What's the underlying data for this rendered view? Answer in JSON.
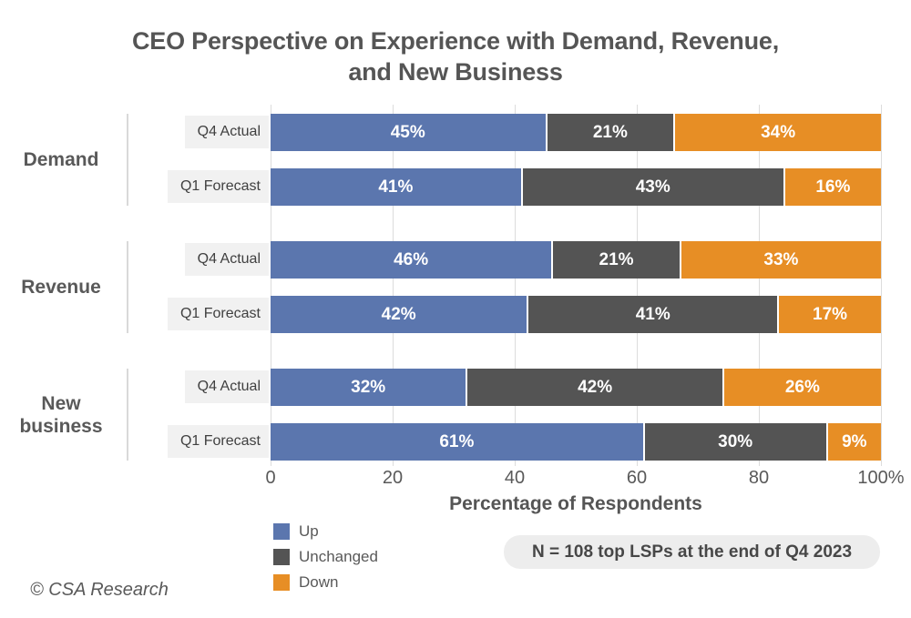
{
  "title": "CEO Perspective on Experience with Demand, Revenue,\nand New Business",
  "note": "N = 108 top LSPs at the end of Q4 2023",
  "footer": {
    "copyright": "© CSA Research"
  },
  "chart_data": {
    "type": "bar",
    "orientation": "horizontal",
    "stacked": true,
    "title": "CEO Perspective on Experience with Demand, Revenue, and New Business",
    "xlabel": "Percentage of Respondents",
    "unit": "%",
    "xlim": [
      0,
      100
    ],
    "x_ticks": [
      "0",
      "20",
      "40",
      "60",
      "80",
      "100%"
    ],
    "x_tick_values": [
      0,
      20,
      40,
      60,
      80,
      100
    ],
    "grid": true,
    "legend_position": "bottom-left",
    "series": [
      {
        "name": "Up",
        "color": "#5B76AE"
      },
      {
        "name": "Unchanged",
        "color": "#545454"
      },
      {
        "name": "Down",
        "color": "#E78E25"
      }
    ],
    "groups": [
      {
        "category": "Demand",
        "rows": [
          {
            "label": "Q4 Actual",
            "values": [
              45,
              21,
              34
            ]
          },
          {
            "label": "Q1 Forecast",
            "values": [
              41,
              43,
              16
            ]
          }
        ]
      },
      {
        "category": "Revenue",
        "rows": [
          {
            "label": "Q4 Actual",
            "values": [
              46,
              21,
              33
            ]
          },
          {
            "label": "Q1 Forecast",
            "values": [
              42,
              41,
              17
            ]
          }
        ]
      },
      {
        "category": "New business",
        "rows": [
          {
            "label": "Q4 Actual",
            "values": [
              32,
              42,
              26
            ]
          },
          {
            "label": "Q1 Forecast",
            "values": [
              61,
              30,
              9
            ]
          }
        ]
      }
    ]
  }
}
